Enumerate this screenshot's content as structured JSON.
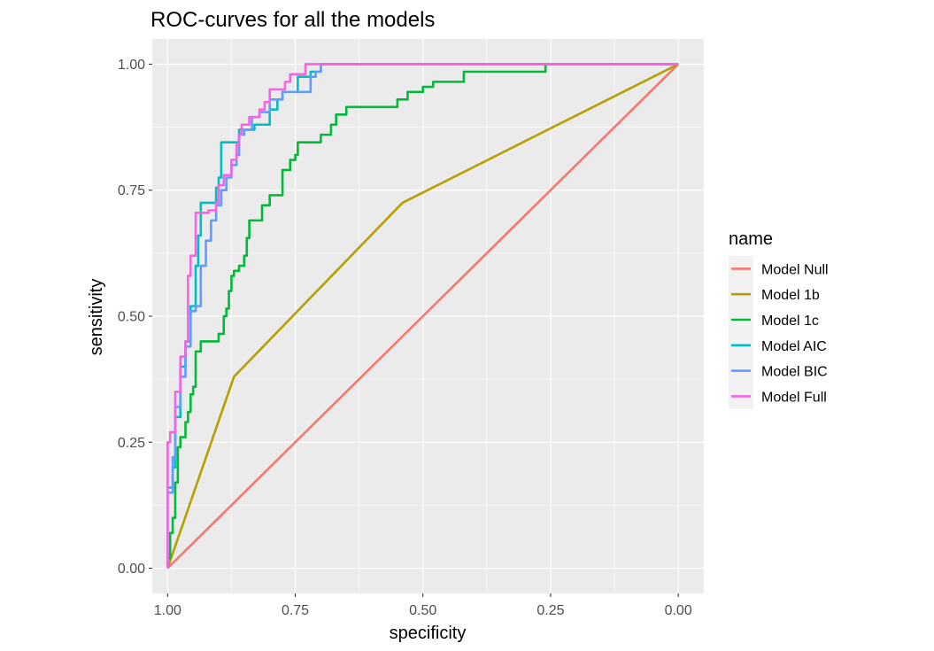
{
  "chart_data": {
    "type": "line",
    "title": "ROC-curves for all the models",
    "xlabel": "specificity",
    "ylabel": "sensitivity",
    "x_reversed": true,
    "xlim": [
      1.03,
      -0.05
    ],
    "ylim": [
      -0.05,
      1.05
    ],
    "x_ticks": [
      1.0,
      0.75,
      0.5,
      0.25,
      0.0
    ],
    "x_tick_labels": [
      "1.00",
      "0.75",
      "0.50",
      "0.25",
      "0.00"
    ],
    "y_ticks": [
      0.0,
      0.25,
      0.5,
      0.75,
      1.0
    ],
    "y_tick_labels": [
      "0.00",
      "0.25",
      "0.50",
      "0.75",
      "1.00"
    ],
    "grid": true,
    "legend_title": "name",
    "legend_position": "right",
    "series": [
      {
        "name": "Model Null",
        "color": "#F8766D",
        "points": [
          [
            1.0,
            0.0
          ],
          [
            0.0,
            1.0
          ]
        ]
      },
      {
        "name": "Model 1b",
        "color": "#B79F00",
        "points": [
          [
            1.0,
            0.0
          ],
          [
            0.87,
            0.38
          ],
          [
            0.54,
            0.725
          ],
          [
            0.0,
            1.0
          ]
        ]
      },
      {
        "name": "Model 1c",
        "color": "#00BA38",
        "points": [
          [
            1.0,
            0.0
          ],
          [
            1.0,
            0.02
          ],
          [
            0.995,
            0.02
          ],
          [
            0.995,
            0.07
          ],
          [
            0.99,
            0.07
          ],
          [
            0.99,
            0.1
          ],
          [
            0.985,
            0.1
          ],
          [
            0.985,
            0.17
          ],
          [
            0.98,
            0.17
          ],
          [
            0.98,
            0.24
          ],
          [
            0.975,
            0.24
          ],
          [
            0.975,
            0.26
          ],
          [
            0.965,
            0.26
          ],
          [
            0.965,
            0.29
          ],
          [
            0.96,
            0.29
          ],
          [
            0.96,
            0.31
          ],
          [
            0.955,
            0.31
          ],
          [
            0.955,
            0.345
          ],
          [
            0.95,
            0.345
          ],
          [
            0.95,
            0.36
          ],
          [
            0.945,
            0.36
          ],
          [
            0.945,
            0.43
          ],
          [
            0.935,
            0.43
          ],
          [
            0.935,
            0.45
          ],
          [
            0.9,
            0.45
          ],
          [
            0.9,
            0.465
          ],
          [
            0.89,
            0.465
          ],
          [
            0.89,
            0.5
          ],
          [
            0.885,
            0.5
          ],
          [
            0.885,
            0.515
          ],
          [
            0.88,
            0.515
          ],
          [
            0.88,
            0.55
          ],
          [
            0.875,
            0.55
          ],
          [
            0.875,
            0.58
          ],
          [
            0.87,
            0.58
          ],
          [
            0.87,
            0.59
          ],
          [
            0.86,
            0.59
          ],
          [
            0.86,
            0.6
          ],
          [
            0.85,
            0.6
          ],
          [
            0.85,
            0.62
          ],
          [
            0.845,
            0.62
          ],
          [
            0.845,
            0.655
          ],
          [
            0.84,
            0.655
          ],
          [
            0.84,
            0.69
          ],
          [
            0.815,
            0.69
          ],
          [
            0.815,
            0.72
          ],
          [
            0.8,
            0.72
          ],
          [
            0.8,
            0.74
          ],
          [
            0.775,
            0.74
          ],
          [
            0.775,
            0.79
          ],
          [
            0.76,
            0.79
          ],
          [
            0.76,
            0.81
          ],
          [
            0.75,
            0.81
          ],
          [
            0.75,
            0.82
          ],
          [
            0.745,
            0.82
          ],
          [
            0.745,
            0.845
          ],
          [
            0.7,
            0.845
          ],
          [
            0.7,
            0.86
          ],
          [
            0.68,
            0.86
          ],
          [
            0.68,
            0.88
          ],
          [
            0.67,
            0.88
          ],
          [
            0.67,
            0.9
          ],
          [
            0.65,
            0.9
          ],
          [
            0.65,
            0.915
          ],
          [
            0.55,
            0.915
          ],
          [
            0.55,
            0.93
          ],
          [
            0.53,
            0.93
          ],
          [
            0.53,
            0.945
          ],
          [
            0.5,
            0.945
          ],
          [
            0.5,
            0.955
          ],
          [
            0.48,
            0.955
          ],
          [
            0.48,
            0.965
          ],
          [
            0.42,
            0.965
          ],
          [
            0.42,
            0.985
          ],
          [
            0.26,
            0.985
          ],
          [
            0.26,
            1.0
          ],
          [
            0.0,
            1.0
          ]
        ]
      },
      {
        "name": "Model AIC",
        "color": "#00BFC4",
        "points": [
          [
            1.0,
            0.0
          ],
          [
            1.0,
            0.16
          ],
          [
            0.99,
            0.16
          ],
          [
            0.99,
            0.2
          ],
          [
            0.985,
            0.2
          ],
          [
            0.985,
            0.3
          ],
          [
            0.975,
            0.3
          ],
          [
            0.975,
            0.4
          ],
          [
            0.965,
            0.4
          ],
          [
            0.965,
            0.45
          ],
          [
            0.955,
            0.45
          ],
          [
            0.955,
            0.52
          ],
          [
            0.945,
            0.52
          ],
          [
            0.945,
            0.6
          ],
          [
            0.94,
            0.6
          ],
          [
            0.94,
            0.66
          ],
          [
            0.935,
            0.66
          ],
          [
            0.935,
            0.725
          ],
          [
            0.905,
            0.725
          ],
          [
            0.905,
            0.755
          ],
          [
            0.9,
            0.755
          ],
          [
            0.9,
            0.775
          ],
          [
            0.895,
            0.775
          ],
          [
            0.895,
            0.845
          ],
          [
            0.86,
            0.845
          ],
          [
            0.86,
            0.87
          ],
          [
            0.83,
            0.87
          ],
          [
            0.83,
            0.88
          ],
          [
            0.8,
            0.88
          ],
          [
            0.8,
            0.91
          ],
          [
            0.785,
            0.91
          ],
          [
            0.785,
            0.93
          ],
          [
            0.775,
            0.93
          ],
          [
            0.775,
            0.945
          ],
          [
            0.745,
            0.945
          ],
          [
            0.745,
            0.975
          ],
          [
            0.72,
            0.975
          ],
          [
            0.72,
            0.985
          ],
          [
            0.7,
            0.985
          ],
          [
            0.7,
            1.0
          ],
          [
            0.0,
            1.0
          ]
        ]
      },
      {
        "name": "Model BIC",
        "color": "#619CFF",
        "points": [
          [
            1.0,
            0.0
          ],
          [
            1.0,
            0.15
          ],
          [
            0.99,
            0.15
          ],
          [
            0.99,
            0.22
          ],
          [
            0.985,
            0.22
          ],
          [
            0.985,
            0.32
          ],
          [
            0.975,
            0.32
          ],
          [
            0.975,
            0.38
          ],
          [
            0.965,
            0.38
          ],
          [
            0.965,
            0.44
          ],
          [
            0.955,
            0.44
          ],
          [
            0.955,
            0.51
          ],
          [
            0.945,
            0.51
          ],
          [
            0.945,
            0.52
          ],
          [
            0.935,
            0.52
          ],
          [
            0.935,
            0.6
          ],
          [
            0.925,
            0.6
          ],
          [
            0.925,
            0.65
          ],
          [
            0.915,
            0.65
          ],
          [
            0.915,
            0.69
          ],
          [
            0.905,
            0.69
          ],
          [
            0.905,
            0.72
          ],
          [
            0.895,
            0.72
          ],
          [
            0.895,
            0.75
          ],
          [
            0.885,
            0.75
          ],
          [
            0.885,
            0.775
          ],
          [
            0.875,
            0.775
          ],
          [
            0.875,
            0.8
          ],
          [
            0.865,
            0.8
          ],
          [
            0.865,
            0.82
          ],
          [
            0.86,
            0.82
          ],
          [
            0.86,
            0.86
          ],
          [
            0.85,
            0.86
          ],
          [
            0.85,
            0.87
          ],
          [
            0.835,
            0.87
          ],
          [
            0.835,
            0.895
          ],
          [
            0.82,
            0.895
          ],
          [
            0.82,
            0.905
          ],
          [
            0.8,
            0.905
          ],
          [
            0.8,
            0.93
          ],
          [
            0.775,
            0.93
          ],
          [
            0.775,
            0.945
          ],
          [
            0.72,
            0.945
          ],
          [
            0.72,
            0.975
          ],
          [
            0.71,
            0.975
          ],
          [
            0.71,
            0.985
          ],
          [
            0.7,
            0.985
          ],
          [
            0.7,
            1.0
          ],
          [
            0.0,
            1.0
          ]
        ]
      },
      {
        "name": "Model Full",
        "color": "#F564E3",
        "points": [
          [
            1.0,
            0.0
          ],
          [
            1.0,
            0.25
          ],
          [
            0.995,
            0.25
          ],
          [
            0.995,
            0.27
          ],
          [
            0.985,
            0.27
          ],
          [
            0.985,
            0.35
          ],
          [
            0.975,
            0.35
          ],
          [
            0.975,
            0.42
          ],
          [
            0.965,
            0.42
          ],
          [
            0.965,
            0.45
          ],
          [
            0.96,
            0.45
          ],
          [
            0.96,
            0.58
          ],
          [
            0.955,
            0.58
          ],
          [
            0.955,
            0.62
          ],
          [
            0.945,
            0.62
          ],
          [
            0.945,
            0.705
          ],
          [
            0.92,
            0.705
          ],
          [
            0.92,
            0.71
          ],
          [
            0.905,
            0.71
          ],
          [
            0.905,
            0.725
          ],
          [
            0.9,
            0.725
          ],
          [
            0.9,
            0.76
          ],
          [
            0.89,
            0.76
          ],
          [
            0.89,
            0.78
          ],
          [
            0.875,
            0.78
          ],
          [
            0.875,
            0.81
          ],
          [
            0.865,
            0.81
          ],
          [
            0.865,
            0.84
          ],
          [
            0.86,
            0.84
          ],
          [
            0.86,
            0.86
          ],
          [
            0.855,
            0.86
          ],
          [
            0.855,
            0.88
          ],
          [
            0.84,
            0.88
          ],
          [
            0.84,
            0.895
          ],
          [
            0.82,
            0.895
          ],
          [
            0.82,
            0.91
          ],
          [
            0.81,
            0.91
          ],
          [
            0.81,
            0.925
          ],
          [
            0.8,
            0.925
          ],
          [
            0.8,
            0.95
          ],
          [
            0.77,
            0.95
          ],
          [
            0.77,
            0.965
          ],
          [
            0.76,
            0.965
          ],
          [
            0.76,
            0.98
          ],
          [
            0.73,
            0.98
          ],
          [
            0.73,
            1.0
          ],
          [
            0.0,
            1.0
          ]
        ]
      }
    ]
  }
}
